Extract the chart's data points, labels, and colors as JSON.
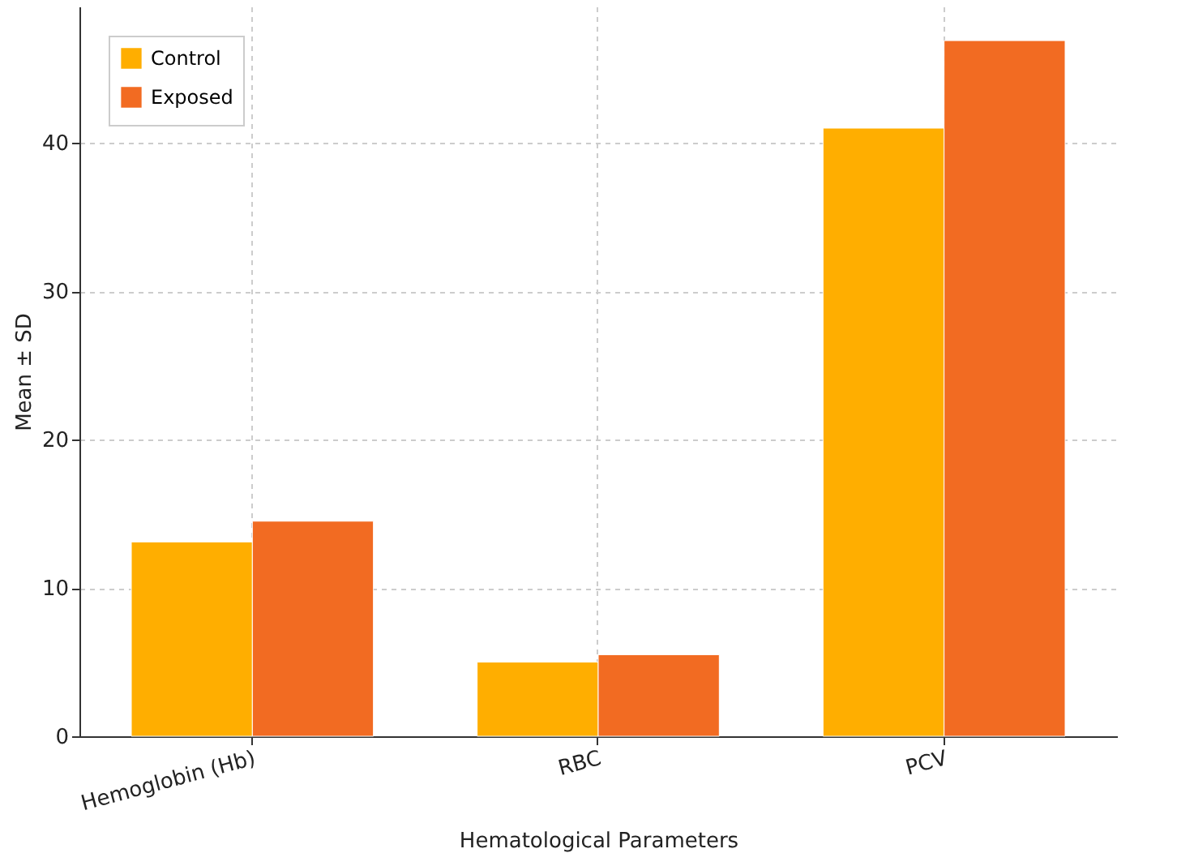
{
  "chart_data": {
    "type": "bar",
    "xlabel": "Hematological Parameters",
    "ylabel": "Mean ± SD",
    "categories": [
      "Hemoglobin (Hb)",
      "RBC",
      "PCV"
    ],
    "series": [
      {
        "name": "Control",
        "color": "#ffae00",
        "values": [
          13.1,
          5.0,
          41.0
        ]
      },
      {
        "name": "Exposed",
        "color": "#f26b22",
        "values": [
          14.5,
          5.5,
          46.9
        ]
      }
    ],
    "ylim": [
      0,
      49.2
    ],
    "yticks": [
      0,
      10,
      20,
      30,
      40
    ],
    "grid": true,
    "legend": "top left"
  }
}
